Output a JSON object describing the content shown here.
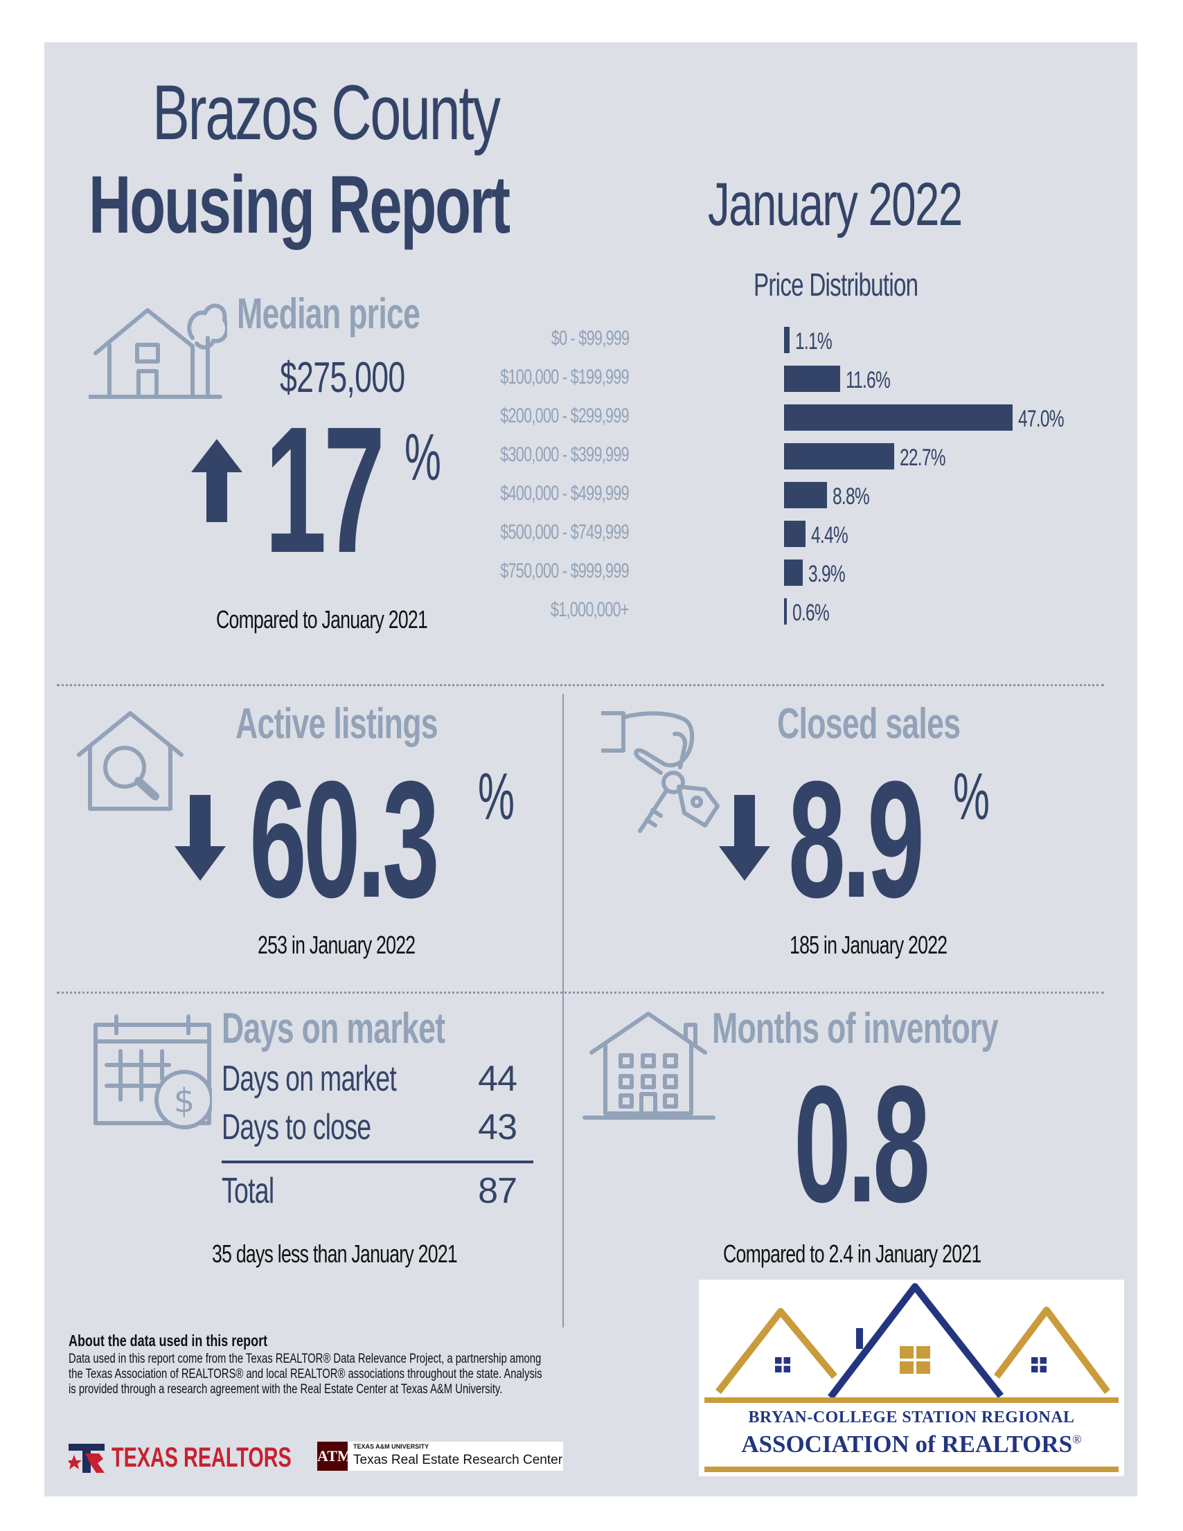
{
  "header": {
    "title_line1": "Brazos County",
    "title_line2": "Housing Report",
    "period": "January 2022"
  },
  "median_price": {
    "heading": "Median price",
    "value": "$275,000",
    "change_direction": "up",
    "change_number": "17",
    "change_unit": "%",
    "comparison": "Compared to January 2021",
    "icon": "house-with-tree-icon"
  },
  "price_distribution": {
    "title": "Price Distribution"
  },
  "chart_data": {
    "type": "bar",
    "orientation": "horizontal",
    "title": "Price Distribution",
    "categories": [
      "$0 - $99,999",
      "$100,000 - $199,999",
      "$200,000 - $299,999",
      "$300,000 - $399,999",
      "$400,000 - $499,999",
      "$500,000 - $749,999",
      "$750,000 - $999,999",
      "$1,000,000+"
    ],
    "values": [
      1.1,
      11.6,
      47.0,
      22.7,
      8.8,
      4.4,
      3.9,
      0.6
    ],
    "value_labels": [
      "1.1%",
      "11.6%",
      "47.0%",
      "22.7%",
      "8.8%",
      "4.4%",
      "3.9%",
      "0.6%"
    ],
    "xlim": [
      0,
      47.0
    ],
    "bar_color": "#344468",
    "grid": false
  },
  "active_listings": {
    "heading": "Active listings",
    "change_direction": "down",
    "change_number": "60.3",
    "change_unit": "%",
    "caption": "253 in January 2022",
    "icon": "house-magnifier-icon"
  },
  "closed_sales": {
    "heading": "Closed sales",
    "change_direction": "down",
    "change_number": "8.9",
    "change_unit": "%",
    "caption": "185 in January 2022",
    "icon": "hand-holding-keys-icon"
  },
  "days_on_market": {
    "heading": "Days on market",
    "rows": [
      {
        "label": "Days on market",
        "value": "44"
      },
      {
        "label": "Days to close",
        "value": "43"
      }
    ],
    "total_label": "Total",
    "total_value": "87",
    "caption": "35 days less than January 2021",
    "icon": "calendar-dollar-icon"
  },
  "months_inventory": {
    "heading": "Months of inventory",
    "value": "0.8",
    "caption": "Compared to 2.4 in January 2021",
    "icon": "apartment-building-icon"
  },
  "about": {
    "title": "About the data used in this report",
    "text": "Data used in this report come from the Texas REALTOR® Data Relevance Project, a partnership among the Texas Association of REALTORS® and local REALTOR® associations throughout the state. Analysis is provided through a research agreement with the Real Estate Center at Texas A&M University."
  },
  "footer_logos": {
    "texas_realtors": "TEXAS REALTORS",
    "tamu_small": "TEXAS A&M UNIVERSITY",
    "tamu_center": "Texas Real Estate Research Center",
    "association_line1": "BRYAN-COLLEGE STATION REGIONAL",
    "association_line2": "ASSOCIATION of REALTORS",
    "registered": "®"
  },
  "colors": {
    "navy": "#344468",
    "pale_blue": "#92a2b8",
    "panel": "#dcdfe6",
    "gold": "#c99b3b",
    "logo_blue": "#233580"
  }
}
